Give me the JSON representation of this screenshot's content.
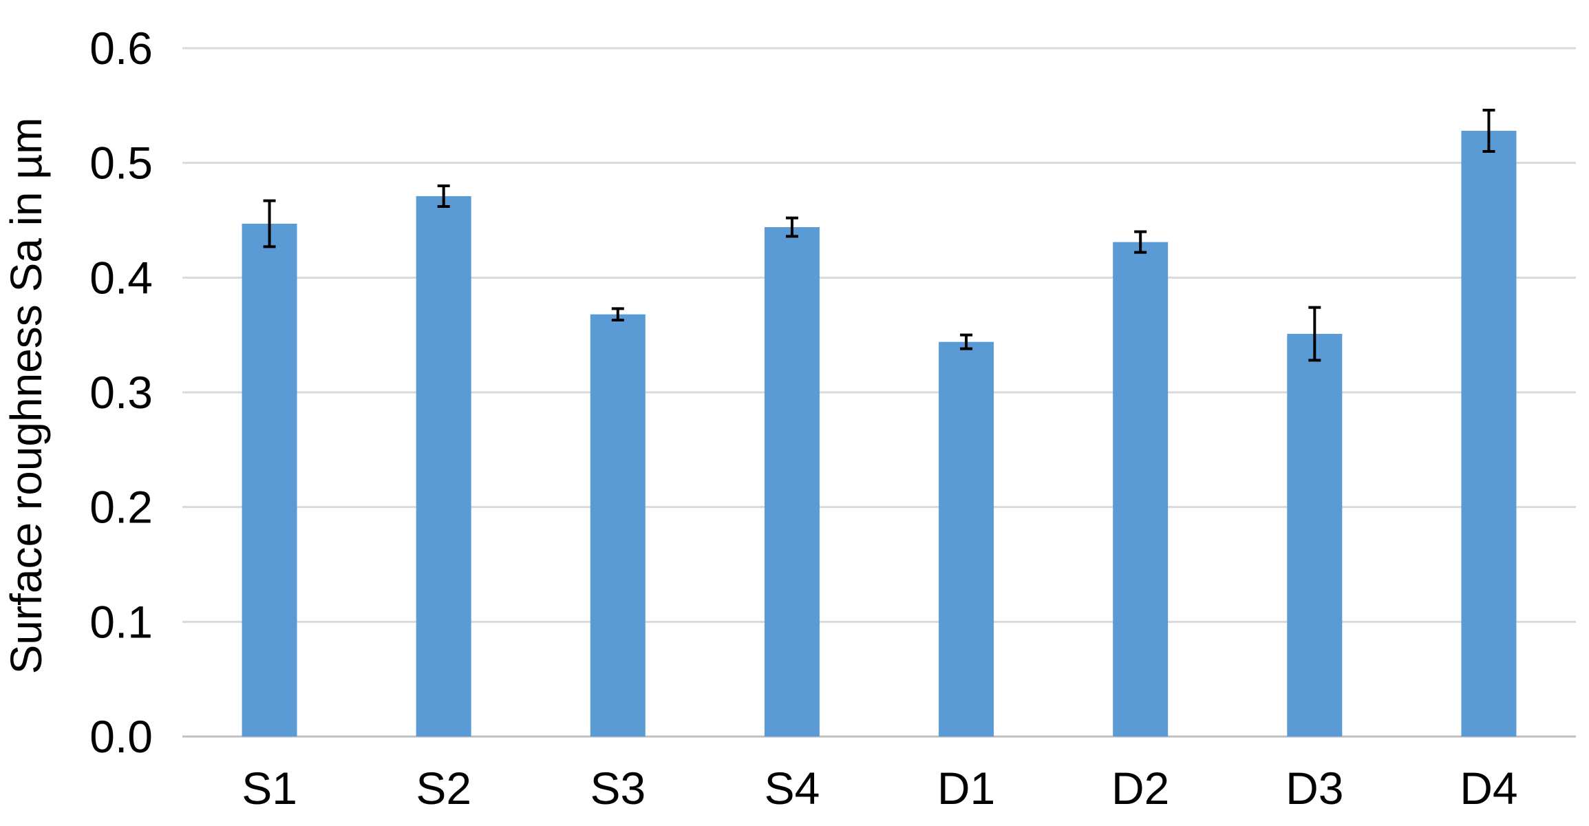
{
  "chart_data": {
    "type": "bar",
    "title": "",
    "xlabel": "",
    "ylabel": "Surface roughness Sa in µm",
    "categories": [
      "S1",
      "S2",
      "S3",
      "S4",
      "D1",
      "D2",
      "D3",
      "D4"
    ],
    "values": [
      0.447,
      0.471,
      0.368,
      0.444,
      0.344,
      0.431,
      0.351,
      0.528
    ],
    "error": [
      0.02,
      0.009,
      0.005,
      0.008,
      0.006,
      0.009,
      0.023,
      0.018
    ],
    "ylim": [
      0,
      0.6
    ],
    "yticks": [
      "0.0",
      "0.1",
      "0.2",
      "0.3",
      "0.4",
      "0.5",
      "0.6"
    ],
    "grid": true,
    "legend": "none",
    "colors": {
      "bar": "#5B9BD5",
      "grid": "#D9D9D9",
      "error_bar": "#000000",
      "text": "#000000"
    }
  }
}
